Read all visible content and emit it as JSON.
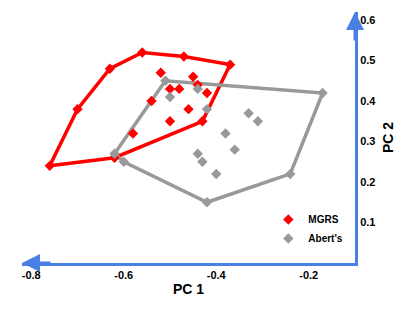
{
  "chart_data": {
    "type": "scatter",
    "x_label": "PC 1",
    "y_label": "PC 2",
    "xlim": [
      -0.82,
      -0.1
    ],
    "ylim": [
      0,
      0.62
    ],
    "xticks": [
      -0.8,
      -0.6,
      -0.4,
      -0.2
    ],
    "yticks": [
      0.1,
      0.2,
      0.3,
      0.4,
      0.5,
      0.6
    ],
    "legend": "lower right",
    "marker": "diamond",
    "line_style": "hull",
    "series": [
      {
        "name": "MGRS",
        "color": "#ff0000",
        "x": [
          -0.76,
          -0.7,
          -0.63,
          -0.56,
          -0.47,
          -0.37,
          -0.43,
          -0.62,
          -0.52,
          -0.5,
          -0.48,
          -0.45,
          -0.44,
          -0.42,
          -0.5,
          -0.58,
          -0.54,
          -0.46
        ],
        "y": [
          0.24,
          0.38,
          0.48,
          0.52,
          0.51,
          0.49,
          0.35,
          0.26,
          0.47,
          0.43,
          0.43,
          0.46,
          0.44,
          0.42,
          0.35,
          0.32,
          0.4,
          0.38
        ]
      },
      {
        "name": "Abert's",
        "color": "#999999",
        "x": [
          -0.62,
          -0.6,
          -0.51,
          -0.44,
          -0.17,
          -0.24,
          -0.42,
          -0.5,
          -0.42,
          -0.33,
          -0.31,
          -0.38,
          -0.44,
          -0.4,
          -0.43,
          -0.36
        ],
        "y": [
          0.27,
          0.25,
          0.45,
          0.43,
          0.42,
          0.22,
          0.15,
          0.41,
          0.38,
          0.37,
          0.35,
          0.32,
          0.27,
          0.22,
          0.25,
          0.28
        ]
      }
    ]
  }
}
